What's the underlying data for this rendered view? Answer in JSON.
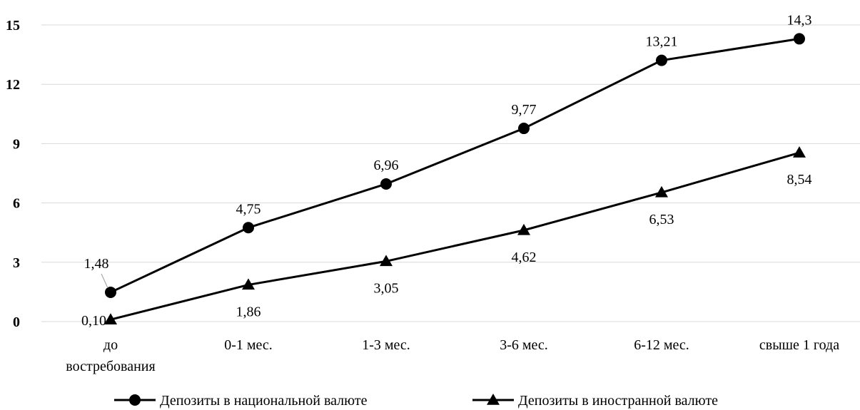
{
  "chart_data": {
    "type": "line",
    "categories": [
      [
        "до",
        "востребования"
      ],
      [
        "0-1 мес."
      ],
      [
        "1-3 мес."
      ],
      [
        "3-6 мес."
      ],
      [
        "6-12 мес."
      ],
      [
        "свыше 1 года"
      ]
    ],
    "ylim": [
      0,
      15
    ],
    "yticks": [
      0,
      3,
      6,
      9,
      12,
      15
    ],
    "grid": true,
    "legend_position": "bottom",
    "series": [
      {
        "name": "Депозиты в национальной валюте",
        "marker": "circle",
        "values": [
          1.48,
          4.75,
          6.96,
          9.77,
          13.21,
          14.3
        ],
        "labels": [
          "1,48",
          "4,75",
          "6,96",
          "9,77",
          "13,21",
          "14,3"
        ],
        "label_position": "above"
      },
      {
        "name": "Депозиты в иностранной валюте",
        "marker": "triangle",
        "values": [
          0.1,
          1.86,
          3.05,
          4.62,
          6.53,
          8.54
        ],
        "labels": [
          "0,10",
          "1,86",
          "3,05",
          "4,62",
          "6,53",
          "8,54"
        ],
        "label_position": "below"
      }
    ],
    "colors": {
      "line": "#000000",
      "grid": "#d9d9d9"
    }
  }
}
